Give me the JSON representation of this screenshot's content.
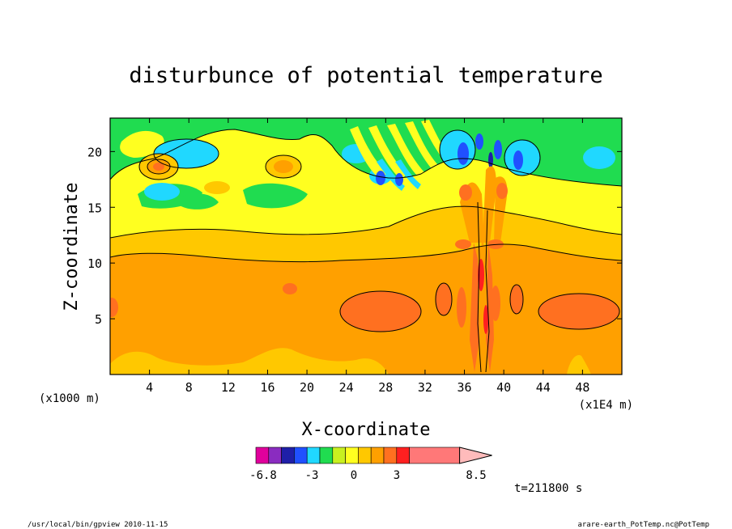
{
  "chart_data": {
    "type": "heatmap",
    "title": "disturbunce of potential temperature",
    "xlabel": "X-coordinate",
    "ylabel": "Z-coordinate",
    "x_unit_left": "(x1000 m)",
    "x_unit_right": "(x1E4 m)",
    "xlim": [
      0,
      52
    ],
    "ylim": [
      0,
      23
    ],
    "x_ticks": [
      4,
      8,
      12,
      16,
      20,
      24,
      28,
      32,
      36,
      40,
      44,
      48
    ],
    "y_ticks": [
      5,
      10,
      15,
      20
    ],
    "time_label": "t=211800 s",
    "colorbar": {
      "colors": [
        "#e0009c",
        "#8a2cc0",
        "#1f1fa8",
        "#2050ff",
        "#20d8ff",
        "#20dc50",
        "#c8f020",
        "#ffff20",
        "#ffc800",
        "#ffa000",
        "#ff7020",
        "#ff2020",
        "#ff7878",
        "#ffbbbb"
      ],
      "tick_labels": [
        "-6.8",
        "-3",
        "0",
        "3",
        "8.5"
      ]
    },
    "features": [
      {
        "kind": "background",
        "level": "weak negative",
        "color": "#20dc50"
      },
      {
        "kind": "band",
        "level": "positive",
        "z_range": [
          0,
          11
        ],
        "color": "#ffa000"
      },
      {
        "kind": "band",
        "level": "weak positive",
        "z_range": [
          11,
          16
        ],
        "color": "#ffc800"
      },
      {
        "kind": "blob",
        "level": "max",
        "x": 36.8,
        "z": 8,
        "color": "#ff7020"
      },
      {
        "kind": "blob",
        "level": "min",
        "x": 36,
        "z": 19.5,
        "color": "#2050ff"
      }
    ]
  },
  "footer": {
    "left": "/usr/local/bin/gpview   2010-11-15",
    "right": "arare-earth_PotTemp.nc@PotTemp"
  }
}
